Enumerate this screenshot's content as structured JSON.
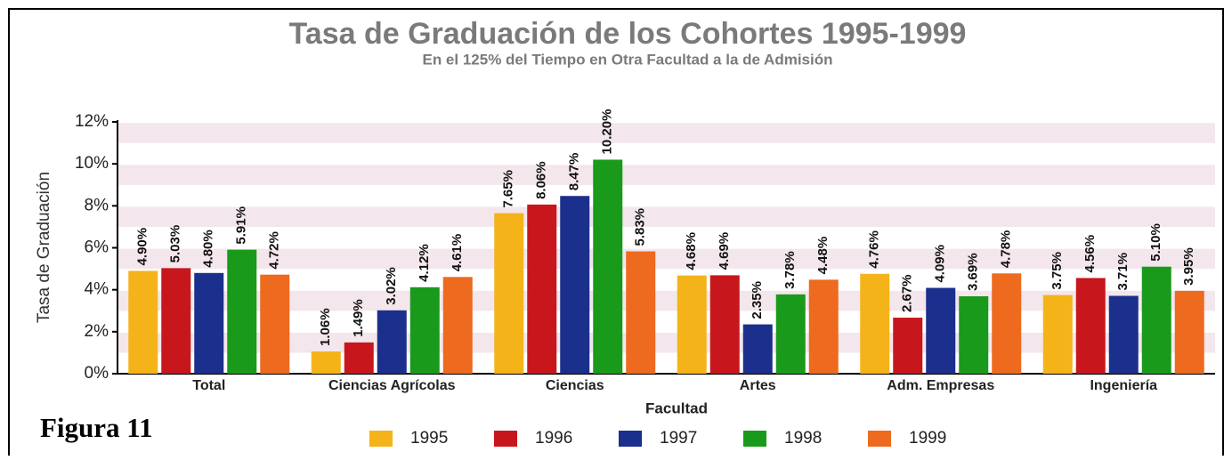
{
  "chart_data": {
    "type": "bar",
    "title": "Tasa de Graduación de los Cohortes 1995-1999",
    "subtitle": "En el 125% del Tiempo en Otra Facultad a la de Admisión",
    "caption": "Figura 11",
    "x_label": "Facultad",
    "y_label": "Tasa de Graduación",
    "categories": [
      "Total",
      "Ciencias Agrícolas",
      "Ciencias",
      "Artes",
      "Adm. Empresas",
      "Ingeniería"
    ],
    "series": [
      {
        "name": "1995",
        "color": "#f5b31a",
        "values": [
          4.9,
          1.06,
          7.65,
          4.68,
          4.76,
          3.75
        ],
        "value_labels": [
          "4.90%",
          "1.06%",
          "7.65%",
          "4.68%",
          "4.76%",
          "3.75%"
        ]
      },
      {
        "name": "1996",
        "color": "#c8161d",
        "values": [
          5.03,
          1.49,
          8.06,
          4.69,
          2.67,
          4.56
        ],
        "value_labels": [
          "5.03%",
          "1.49%",
          "8.06%",
          "4.69%",
          "2.67%",
          "4.56%"
        ]
      },
      {
        "name": "1997",
        "color": "#1b2f8c",
        "values": [
          4.8,
          3.02,
          8.47,
          2.35,
          4.09,
          3.71
        ],
        "value_labels": [
          "4.80%",
          "3.02%",
          "8.47%",
          "2.35%",
          "4.09%",
          "3.71%"
        ]
      },
      {
        "name": "1998",
        "color": "#1a9a1a",
        "values": [
          5.91,
          4.12,
          10.2,
          3.78,
          3.69,
          5.1
        ],
        "value_labels": [
          "5.91%",
          "4.12%",
          "10.20%",
          "3.78%",
          "3.69%",
          "5.10%"
        ]
      },
      {
        "name": "1999",
        "color": "#ee6a1e",
        "values": [
          4.72,
          4.61,
          5.83,
          4.48,
          4.78,
          3.95
        ],
        "value_labels": [
          "4.72%",
          "4.61%",
          "5.83%",
          "4.48%",
          "4.78%",
          "3.95%"
        ]
      }
    ],
    "ylim": [
      0,
      12
    ],
    "yticks": [
      {
        "value": 0,
        "label": "0%"
      },
      {
        "value": 2,
        "label": "2%"
      },
      {
        "value": 4,
        "label": "4%"
      },
      {
        "value": 6,
        "label": "6%"
      },
      {
        "value": 8,
        "label": "8%"
      },
      {
        "value": 10,
        "label": "10%"
      },
      {
        "value": 12,
        "label": "12%"
      }
    ],
    "legend": "bottom"
  }
}
